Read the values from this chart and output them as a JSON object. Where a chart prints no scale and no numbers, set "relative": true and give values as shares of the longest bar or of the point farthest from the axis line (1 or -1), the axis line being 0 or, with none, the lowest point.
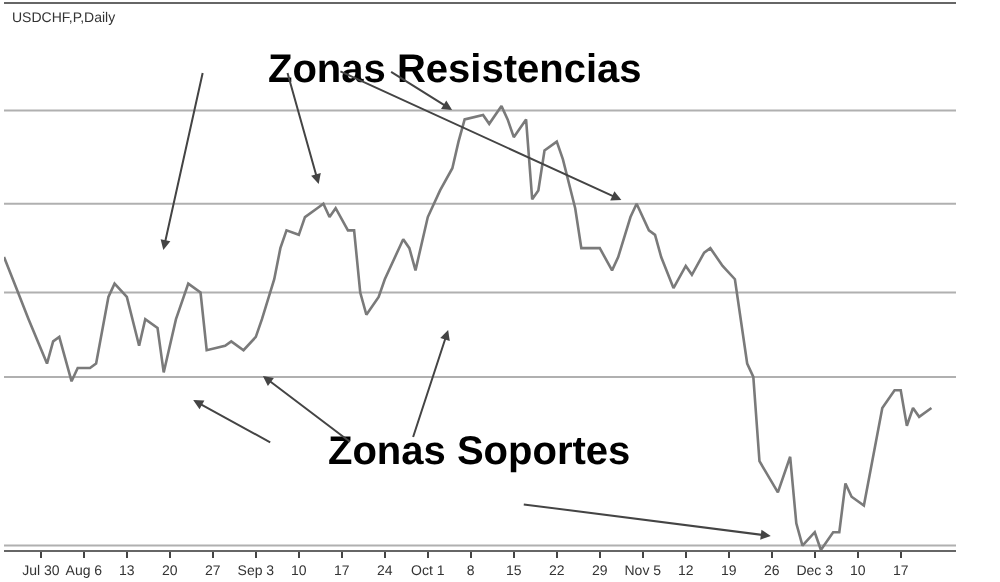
{
  "chart_data": {
    "type": "line",
    "subtitle": "USDCHF,P,Daily",
    "relative": true,
    "grid": false,
    "marker": "none",
    "line_style": "solid",
    "x": [
      "--07-24",
      "--07-26",
      "--07-28",
      "--07-31",
      "--08-01",
      "--08-02",
      "--08-04",
      "--08-05",
      "--08-07",
      "--08-08",
      "--08-10",
      "--08-11",
      "--08-13",
      "--08-15",
      "--08-16",
      "--08-18",
      "--08-19",
      "--08-21",
      "--08-23",
      "--08-25",
      "--08-26",
      "--08-29",
      "--08-30",
      "--09-01",
      "--09-03",
      "--09-04",
      "--09-06",
      "--09-07",
      "--09-08",
      "--09-10",
      "--09-11",
      "--09-13",
      "--09-14",
      "--09-15",
      "--09-16",
      "--09-18",
      "--09-19",
      "--09-20",
      "--09-21",
      "--09-23",
      "--09-24",
      "--09-27",
      "--09-28",
      "--09-29",
      "--10-01",
      "--10-03",
      "--10-05",
      "--10-06",
      "--10-07",
      "--10-10",
      "--10-11",
      "--10-13",
      "--10-14",
      "--10-15",
      "--10-17",
      "--10-18",
      "--10-19",
      "--10-20",
      "--10-22",
      "--10-23",
      "--10-25",
      "--10-26",
      "--10-29",
      "--10-31",
      "--11-01",
      "--11-03",
      "--11-04",
      "--11-06",
      "--11-07",
      "--11-08",
      "--11-10",
      "--11-12",
      "--11-13",
      "--11-15",
      "--11-16",
      "--11-18",
      "--11-20",
      "--11-22",
      "--11-23",
      "--11-24",
      "--11-27",
      "--11-29",
      "--11-30",
      "--12-01",
      "--12-03",
      "--12-04",
      "--12-06",
      "--12-07",
      "--12-08",
      "--12-09",
      "--12-11",
      "--12-14",
      "--12-16",
      "--12-17",
      "--12-18",
      "--12-19",
      "--12-20",
      "--12-22"
    ],
    "series": [
      {
        "color": "#7a7a7a",
        "values": [
          0.66,
          0.59,
          0.52,
          0.42,
          0.47,
          0.48,
          0.38,
          0.41,
          0.41,
          0.42,
          0.57,
          0.6,
          0.57,
          0.46,
          0.52,
          0.5,
          0.4,
          0.52,
          0.6,
          0.58,
          0.45,
          0.46,
          0.47,
          0.45,
          0.48,
          0.52,
          0.61,
          0.68,
          0.72,
          0.71,
          0.75,
          0.77,
          0.78,
          0.75,
          0.77,
          0.72,
          0.72,
          0.58,
          0.53,
          0.57,
          0.61,
          0.7,
          0.68,
          0.63,
          0.75,
          0.81,
          0.86,
          0.92,
          0.97,
          0.98,
          0.96,
          1.0,
          0.97,
          0.93,
          0.97,
          0.79,
          0.81,
          0.9,
          0.92,
          0.88,
          0.77,
          0.68,
          0.68,
          0.63,
          0.66,
          0.75,
          0.78,
          0.72,
          0.71,
          0.66,
          0.59,
          0.64,
          0.62,
          0.67,
          0.68,
          0.64,
          0.61,
          0.42,
          0.39,
          0.2,
          0.13,
          0.21,
          0.06,
          0.01,
          0.04,
          0.0,
          0.04,
          0.04,
          0.15,
          0.12,
          0.1,
          0.32,
          0.36,
          0.36,
          0.28,
          0.32,
          0.3,
          0.32
        ]
      }
    ],
    "xlim": [
      "--07-24",
      "--12-26"
    ],
    "xticks": [
      {
        "value": "--07-30",
        "label": "Jul 30"
      },
      {
        "value": "--08-06",
        "label": "Aug 6"
      },
      {
        "value": "--08-13",
        "label": "13"
      },
      {
        "value": "--08-20",
        "label": "20"
      },
      {
        "value": "--08-27",
        "label": "27"
      },
      {
        "value": "--09-03",
        "label": "Sep 3"
      },
      {
        "value": "--09-10",
        "label": "10"
      },
      {
        "value": "--09-17",
        "label": "17"
      },
      {
        "value": "--09-24",
        "label": "24"
      },
      {
        "value": "--10-01",
        "label": "Oct 1"
      },
      {
        "value": "--10-08",
        "label": "8"
      },
      {
        "value": "--10-15",
        "label": "15"
      },
      {
        "value": "--10-22",
        "label": "22"
      },
      {
        "value": "--10-29",
        "label": "29"
      },
      {
        "value": "--11-05",
        "label": "Nov 5"
      },
      {
        "value": "--11-12",
        "label": "12"
      },
      {
        "value": "--11-19",
        "label": "19"
      },
      {
        "value": "--11-26",
        "label": "26"
      },
      {
        "value": "--12-03",
        "label": "Dec 3"
      },
      {
        "value": "--12-10",
        "label": "10"
      },
      {
        "value": "--12-17",
        "label": "17"
      }
    ],
    "ref_lines": [
      {
        "axis": "y",
        "value": 0.99,
        "color": "#b0b0b0"
      },
      {
        "axis": "y",
        "value": 0.78,
        "color": "#b0b0b0"
      },
      {
        "axis": "y",
        "value": 0.58,
        "color": "#b0b0b0"
      },
      {
        "axis": "y",
        "value": 0.39,
        "color": "#b0b0b0"
      },
      {
        "axis": "y",
        "value": 0.01,
        "color": "#b0b0b0"
      }
    ],
    "annotations": [
      "Zonas Resistencias",
      "Zonas Soportes"
    ]
  }
}
